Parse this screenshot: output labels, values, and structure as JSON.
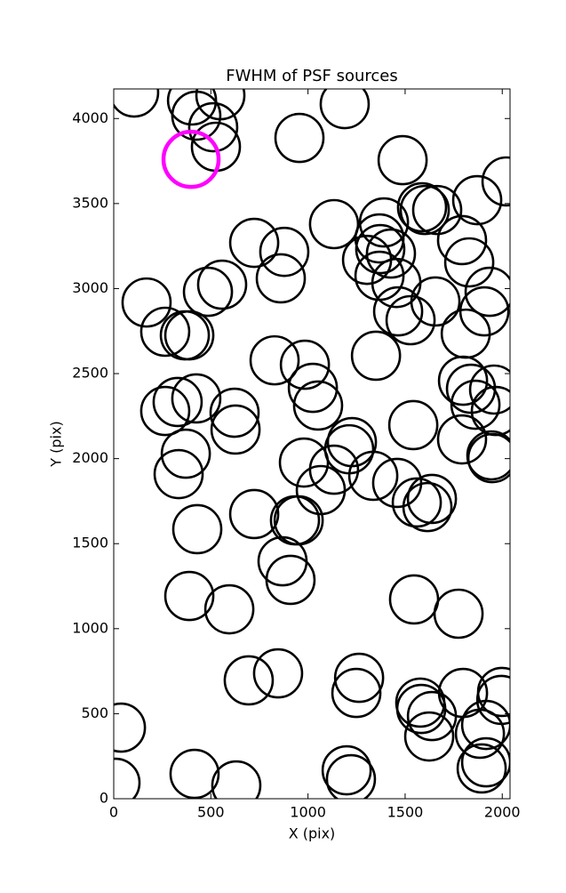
{
  "chart_data": {
    "type": "scatter",
    "title": "FWHM of PSF sources",
    "x_label": "X (pix)",
    "y_label": "Y (pix)",
    "xlim": [
      0,
      2040
    ],
    "ylim": [
      0,
      4174
    ],
    "xticks": [
      0,
      500,
      1000,
      1500,
      2000
    ],
    "yticks": [
      0,
      500,
      1000,
      1500,
      2000,
      2500,
      3000,
      3500,
      4000
    ],
    "series": [
      {
        "color": "#000000",
        "x": [
          105,
          403,
          549,
          425,
          512,
          526,
          1189,
          956,
          1487,
          2022,
          1587,
          1601,
          1665,
          1871,
          1134,
          1391,
          1368,
          1372,
          1427,
          1304,
          1368,
          1455,
          1793,
          1830,
          723,
          878,
          860,
          558,
          485,
          169,
          265,
          366,
          389,
          1935,
          1908,
          1464,
          1528,
          1812,
          1656,
          1350,
          828,
          984,
          1025,
          1052,
          1798,
          1839,
          1862,
          1958,
          1967,
          329,
          265,
          425,
          622,
          627,
          1542,
          1226,
          1212,
          1793,
          1944,
          1949,
          371,
          334,
          979,
          1134,
          1336,
          1459,
          1066,
          1560,
          1638,
          1615,
          723,
          933,
          952,
          430,
          869,
          910,
          389,
          595,
          1546,
          1775,
          695,
          846,
          1263,
          1249,
          1798,
          1999,
          1995,
          1578,
          1583,
          1638,
          1624,
          1917,
          1885,
          1917,
          1894,
          37,
          9,
          416,
          631,
          1199,
          1221
        ],
        "values": [
          4153,
          4106,
          4137,
          4017,
          3949,
          3834,
          4085,
          3886,
          3755,
          3630,
          3478,
          3462,
          3462,
          3520,
          3379,
          3389,
          3295,
          3232,
          3206,
          3169,
          3075,
          3033,
          3285,
          3154,
          3269,
          3216,
          3060,
          3023,
          2981,
          2918,
          2746,
          2725,
          2725,
          2981,
          2866,
          2866,
          2814,
          2735,
          2924,
          2605,
          2578,
          2552,
          2416,
          2312,
          2458,
          2411,
          2317,
          2406,
          2280,
          2333,
          2280,
          2354,
          2270,
          2171,
          2197,
          2097,
          2055,
          2113,
          2019,
          2003,
          2029,
          1909,
          1977,
          1935,
          1899,
          1857,
          1815,
          1742,
          1763,
          1715,
          1674,
          1637,
          1637,
          1585,
          1396,
          1287,
          1192,
          1114,
          1172,
          1088,
          696,
          737,
          711,
          622,
          622,
          628,
          581,
          565,
          528,
          486,
          366,
          434,
          382,
          214,
          178,
          418,
          94,
          146,
          78,
          167,
          115
        ]
      },
      {
        "color": "#ff00ff",
        "x": [
          398
        ],
        "values": [
          3760
        ]
      }
    ]
  }
}
